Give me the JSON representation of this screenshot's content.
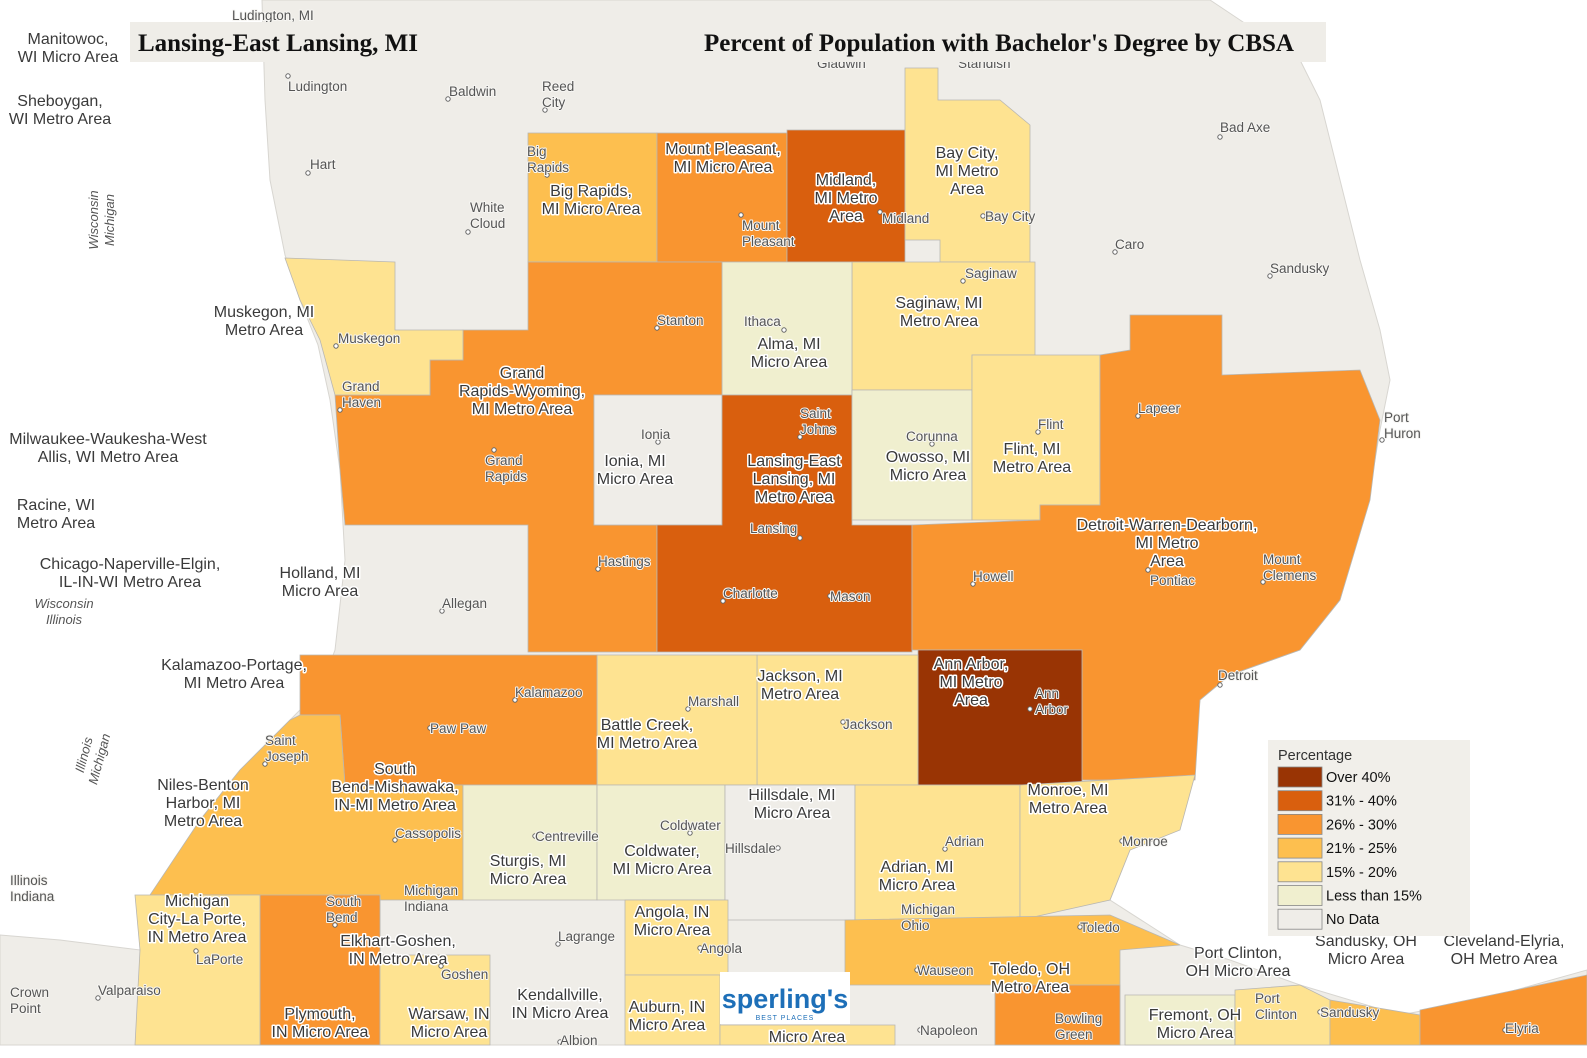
{
  "header": {
    "left_title": "Lansing-East Lansing, MI",
    "right_title": "Percent of Population with Bachelor's Degree by CBSA"
  },
  "legend": {
    "title": "Percentage",
    "items": [
      {
        "label": "Over 40%",
        "color": "#993404"
      },
      {
        "label": "31% - 40%",
        "color": "#d95f0e"
      },
      {
        "label": "26% - 30%",
        "color": "#f99530"
      },
      {
        "label": "21% - 25%",
        "color": "#fdbf4f"
      },
      {
        "label": "15% - 20%",
        "color": "#fee391"
      },
      {
        "label": "Less than 15%",
        "color": "#f0efcf"
      },
      {
        "label": "No Data",
        "color": "#efede8"
      }
    ]
  },
  "cbsa_labels": [
    [
      "Manitowoc,",
      "WI Micro Area"
    ],
    [
      "Sheboygan,",
      "WI Metro Area"
    ],
    [
      "Muskegon, MI",
      "Metro Area"
    ],
    [
      "Milwaukee-Waukesha-West",
      "Allis, WI Metro Area"
    ],
    [
      "Racine, WI",
      "Metro Area"
    ],
    [
      "Chicago-Naperville-Elgin,",
      "IL-IN-WI Metro Area"
    ],
    [
      "Holland, MI",
      "Micro Area"
    ],
    [
      "Kalamazoo-Portage,",
      "MI Metro Area"
    ],
    [
      "Niles-Benton",
      "Harbor, MI",
      "Metro Area"
    ],
    [
      "Michigan",
      "City-La Porte,",
      "IN Metro Area"
    ],
    [
      "Plymouth,",
      "IN Micro Area"
    ],
    [
      "Big Rapids,",
      "MI Micro Area"
    ],
    [
      "Mount Pleasant,",
      "MI Micro Area"
    ],
    [
      "Midland,",
      "MI Metro",
      "Area"
    ],
    [
      "Bay City,",
      "MI Metro",
      "Area"
    ],
    [
      "Saginaw, MI",
      "Metro Area"
    ],
    [
      "Alma, MI",
      "Micro Area"
    ],
    [
      "Grand",
      "Rapids-Wyoming,",
      "MI Metro Area"
    ],
    [
      "Ionia, MI",
      "Micro Area"
    ],
    [
      "Lansing-East",
      "Lansing, MI",
      "Metro Area"
    ],
    [
      "Owosso, MI",
      "Micro Area"
    ],
    [
      "Flint, MI",
      "Metro Area"
    ],
    [
      "Detroit-Warren-Dearborn,",
      "MI Metro",
      "Area"
    ],
    [
      "Ann Arbor,",
      "MI Metro",
      "Area"
    ],
    [
      "Jackson, MI",
      "Metro Area"
    ],
    [
      "Battle Creek,",
      "MI Metro Area"
    ],
    [
      "South",
      "Bend-Mishawaka,",
      "IN-MI Metro Area"
    ],
    [
      "Hillsdale, MI",
      "Micro Area"
    ],
    [
      "Monroe, MI",
      "Metro Area"
    ],
    [
      "Sturgis, MI",
      "Micro Area"
    ],
    [
      "Coldwater,",
      "MI Micro Area"
    ],
    [
      "Adrian, MI",
      "Micro Area"
    ],
    [
      "Elkhart-Goshen,",
      "IN Metro Area"
    ],
    [
      "Angola, IN",
      "Micro Area"
    ],
    [
      "Toledo, OH",
      "Metro Area"
    ],
    [
      "Port Clinton,",
      "OH Micro Area"
    ],
    [
      "Sandusky, OH",
      "Micro Area"
    ],
    [
      "Cleveland-Elyria,",
      "OH Metro Area"
    ],
    [
      "Kendallville,",
      "IN Micro Area"
    ],
    [
      "Warsaw, IN",
      "Micro Area"
    ],
    [
      "Auburn, IN",
      "Micro Area"
    ],
    [
      "Fremont, OH",
      "Micro Area"
    ],
    [
      "Micro Area"
    ]
  ],
  "place_labels": [
    [
      "Ludington, MI"
    ],
    [
      "Ludington"
    ],
    [
      "Baldwin"
    ],
    [
      "Reed",
      "City"
    ],
    [
      "Gladwin"
    ],
    [
      "Standish"
    ],
    [
      "Hart"
    ],
    [
      "Big",
      "Rapids"
    ],
    [
      "White",
      "Cloud"
    ],
    [
      "Mount",
      "Pleasant"
    ],
    [
      "Midland"
    ],
    [
      "Bay City"
    ],
    [
      "Bad Axe"
    ],
    [
      "Caro"
    ],
    [
      "Sandusky"
    ],
    [
      "Saginaw"
    ],
    [
      "Stanton"
    ],
    [
      "Ithaca"
    ],
    [
      "Muskegon"
    ],
    [
      "Grand",
      "Haven"
    ],
    [
      "Lapeer"
    ],
    [
      "Port",
      "Huron"
    ],
    [
      "Ionia"
    ],
    [
      "Saint",
      "Johns"
    ],
    [
      "Corunna"
    ],
    [
      "Flint"
    ],
    [
      "Grand",
      "Rapids"
    ],
    [
      "Lansing"
    ],
    [
      "Hastings"
    ],
    [
      "Howell"
    ],
    [
      "Pontiac"
    ],
    [
      "Mount",
      "Clemens"
    ],
    [
      "Allegan"
    ],
    [
      "Charlotte"
    ],
    [
      "Mason"
    ],
    [
      "Detroit"
    ],
    [
      "Kalamazoo"
    ],
    [
      "Marshall"
    ],
    [
      "Paw Paw"
    ],
    [
      "Jackson"
    ],
    [
      "Ann",
      "Arbor"
    ],
    [
      "Saint",
      "Joseph"
    ],
    [
      "Cassopolis"
    ],
    [
      "Centreville"
    ],
    [
      "Coldwater"
    ],
    [
      "Hillsdale"
    ],
    [
      "Adrian"
    ],
    [
      "Monroe"
    ],
    [
      "Illinois",
      "Indiana"
    ],
    [
      "Michigan",
      "Indiana"
    ],
    [
      "South",
      "Bend"
    ],
    [
      "Michigan",
      "Ohio"
    ],
    [
      "Toledo"
    ],
    [
      "Lagrange"
    ],
    [
      "Angola"
    ],
    [
      "LaPorte"
    ],
    [
      "Goshen"
    ],
    [
      "Wauseon"
    ],
    [
      "Crown",
      "Point"
    ],
    [
      "Valparaiso"
    ],
    [
      "Port",
      "Clinton"
    ],
    [
      "Napoleon"
    ],
    [
      "Sandusky"
    ],
    [
      "Bowling",
      "Green"
    ],
    [
      "Elyria"
    ],
    [
      "Albion"
    ]
  ],
  "border_labels": [
    [
      "Wisconsin",
      "Michigan"
    ],
    [
      "Wisconsin",
      "Illinois"
    ],
    [
      "Illinois",
      "Michigan"
    ]
  ],
  "logo": {
    "name": "sperling's",
    "tagline": "BEST PLACES"
  }
}
